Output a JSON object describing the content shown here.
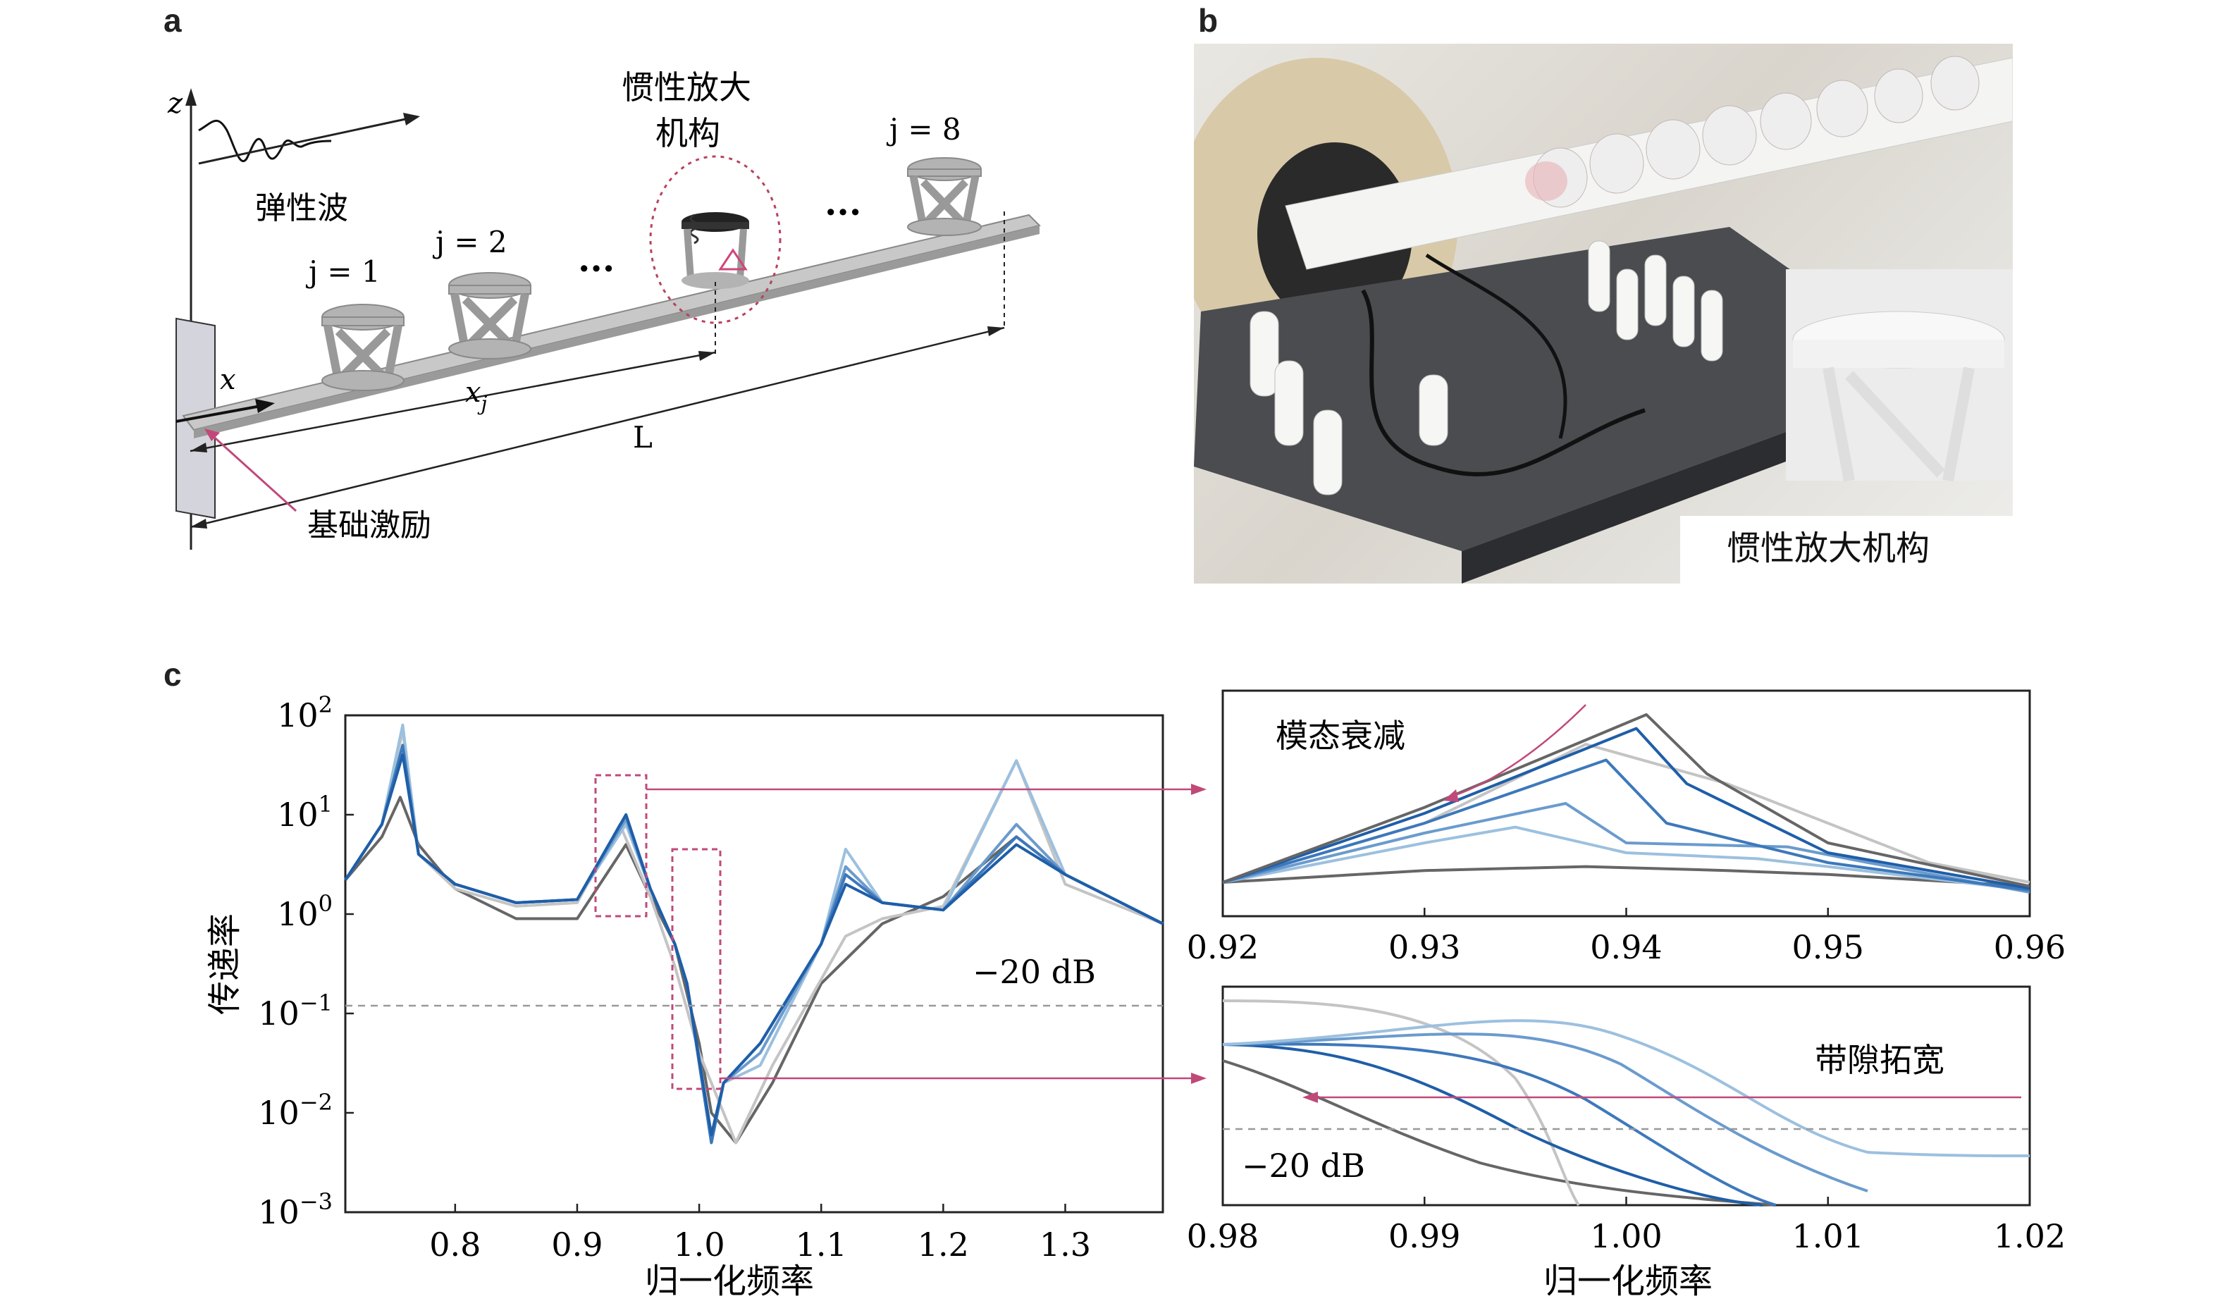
{
  "panel_a": {
    "letter": "a",
    "axis_z": "z",
    "axis_x": "x",
    "wave_label": "弹性波",
    "mechanism_label_line1": "惯性放大",
    "mechanism_label_line2": "机构",
    "cell_labels": [
      "j = 1",
      "j = 2",
      "j = 8"
    ],
    "ellipsis": "···",
    "xj_label": "x",
    "xj_sub": "j",
    "length_label": "L",
    "excitation_label": "基础激励"
  },
  "panel_b": {
    "letter": "b",
    "inset_label": "惯性放大机构"
  },
  "panel_c": {
    "letter": "c",
    "main_ylabel": "传递率",
    "main_xlabel": "归一化频率",
    "main_xticks": [
      "0.8",
      "0.9",
      "1.0",
      "1.1",
      "1.2",
      "1.3"
    ],
    "main_yticks": [
      {
        "base": "10",
        "exp": "2"
      },
      {
        "base": "10",
        "exp": "1"
      },
      {
        "base": "10",
        "exp": "0"
      },
      {
        "base": "10",
        "exp": "−1"
      },
      {
        "base": "10",
        "exp": "−2"
      },
      {
        "base": "10",
        "exp": "−3"
      }
    ],
    "main_threshold_label": "−20 dB",
    "top_inset_label": "模态衰减",
    "top_inset_xticks": [
      "0.92",
      "0.93",
      "0.94",
      "0.95",
      "0.96"
    ],
    "bottom_inset_label": "带隙拓宽",
    "bottom_inset_threshold": "−20 dB",
    "bottom_inset_xticks": [
      "0.98",
      "0.99",
      "1.00",
      "1.01",
      "1.02"
    ],
    "bottom_inset_xlabel": "归一化频率"
  },
  "colors": {
    "dark_gray": "#666666",
    "light_gray": "#c4c4c4",
    "blue_1": "#1f5ea8",
    "blue_2": "#3d78bb",
    "blue_3": "#6a9bcd",
    "blue_4": "#9cc0df",
    "highlight": "#c0497a"
  },
  "chart_data": [
    {
      "type": "line",
      "ylabel": "传递率",
      "xlabel": "归一化频率",
      "xlim": [
        0.71,
        1.38
      ],
      "ylim": [
        0.001,
        100
      ],
      "yscale": "log",
      "threshold": {
        "value": 0.1,
        "label": "−20 dB"
      },
      "series": [
        {
          "x": [
            0.71,
            0.74,
            0.755,
            0.77,
            0.8,
            0.85,
            0.9,
            0.94,
            0.96,
            0.98,
            1.0,
            1.01,
            1.03,
            1.06,
            1.1,
            1.15,
            1.2,
            1.26,
            1.3,
            1.38
          ],
          "values": [
            2.2,
            6,
            15,
            5,
            1.8,
            0.9,
            0.9,
            5,
            1.5,
            0.5,
            0.05,
            0.01,
            0.005,
            0.02,
            0.2,
            0.8,
            1.5,
            6,
            2.5,
            0.8
          ]
        },
        {
          "x": [
            0.71,
            0.74,
            0.757,
            0.77,
            0.8,
            0.85,
            0.9,
            0.935,
            0.96,
            0.98,
            1.0,
            1.01,
            1.03,
            1.06,
            1.12,
            1.15,
            1.2,
            1.26,
            1.3,
            1.38
          ],
          "values": [
            2.2,
            8,
            70,
            4,
            1.8,
            1.2,
            1.3,
            8,
            1.5,
            0.3,
            0.04,
            0.02,
            0.005,
            0.03,
            0.6,
            0.9,
            1.2,
            35,
            2,
            0.8
          ]
        },
        {
          "x": [
            0.71,
            0.74,
            0.757,
            0.77,
            0.8,
            0.85,
            0.9,
            0.94,
            0.96,
            0.98,
            0.99,
            1.01,
            1.02,
            1.05,
            1.1,
            1.12,
            1.15,
            1.2,
            1.26,
            1.3,
            1.38
          ],
          "values": [
            2.2,
            8,
            80,
            4,
            2,
            1.3,
            1.4,
            8,
            1.8,
            0.5,
            0.2,
            0.005,
            0.02,
            0.03,
            0.5,
            4.5,
            1.3,
            1.1,
            35,
            2.5,
            0.8
          ]
        },
        {
          "x": [
            0.71,
            0.74,
            0.757,
            0.77,
            0.8,
            0.85,
            0.9,
            0.94,
            0.96,
            0.98,
            0.99,
            1.01,
            1.02,
            1.05,
            1.1,
            1.12,
            1.15,
            1.2,
            1.26,
            1.3,
            1.38
          ],
          "values": [
            2.2,
            8,
            50,
            4,
            2,
            1.3,
            1.4,
            9,
            1.8,
            0.5,
            0.2,
            0.005,
            0.02,
            0.04,
            0.5,
            3,
            1.3,
            1.1,
            8,
            2.5,
            0.8
          ]
        },
        {
          "x": [
            0.71,
            0.74,
            0.757,
            0.77,
            0.8,
            0.85,
            0.9,
            0.94,
            0.96,
            0.98,
            0.99,
            1.01,
            1.02,
            1.05,
            1.1,
            1.12,
            1.15,
            1.2,
            1.26,
            1.3,
            1.38
          ],
          "values": [
            2.2,
            8,
            50,
            4,
            2,
            1.3,
            1.4,
            10,
            1.8,
            0.5,
            0.2,
            0.005,
            0.02,
            0.05,
            0.5,
            2.5,
            1.3,
            1.1,
            6,
            2.5,
            0.8
          ]
        },
        {
          "x": [
            0.71,
            0.74,
            0.757,
            0.77,
            0.8,
            0.85,
            0.9,
            0.94,
            0.96,
            0.98,
            0.99,
            1.01,
            1.02,
            1.05,
            1.1,
            1.12,
            1.15,
            1.2,
            1.26,
            1.3,
            1.38
          ],
          "values": [
            2.2,
            8,
            40,
            4,
            2,
            1.3,
            1.4,
            10,
            1.8,
            0.5,
            0.2,
            0.006,
            0.02,
            0.05,
            0.5,
            2,
            1.3,
            1.1,
            5,
            2.5,
            0.8
          ]
        }
      ]
    },
    {
      "type": "line",
      "title": "模态衰减",
      "xlim": [
        0.92,
        0.96
      ],
      "series": [
        {
          "x": [
            0.92,
            0.93,
            0.938,
            0.945,
            0.95,
            0.96
          ],
          "values": [
            0.1,
            0.16,
            0.18,
            0.16,
            0.14,
            0.08
          ]
        },
        {
          "x": [
            0.92,
            0.93,
            0.935,
            0.938,
            0.945,
            0.955,
            0.96
          ],
          "values": [
            0.1,
            0.4,
            0.65,
            0.8,
            0.6,
            0.2,
            0.1
          ]
        },
        {
          "x": [
            0.92,
            0.93,
            0.9345,
            0.94,
            0.9465,
            0.95,
            0.96
          ],
          "values": [
            0.1,
            0.3,
            0.38,
            0.25,
            0.22,
            0.18,
            0.06
          ]
        },
        {
          "x": [
            0.92,
            0.93,
            0.937,
            0.94,
            0.948,
            0.952,
            0.96
          ],
          "values": [
            0.1,
            0.35,
            0.5,
            0.3,
            0.28,
            0.2,
            0.05
          ]
        },
        {
          "x": [
            0.92,
            0.93,
            0.939,
            0.942,
            0.95,
            0.96
          ],
          "values": [
            0.1,
            0.4,
            0.72,
            0.4,
            0.2,
            0.06
          ]
        },
        {
          "x": [
            0.92,
            0.93,
            0.9405,
            0.943,
            0.95,
            0.96
          ],
          "values": [
            0.1,
            0.45,
            0.88,
            0.6,
            0.25,
            0.07
          ]
        },
        {
          "x": [
            0.92,
            0.93,
            0.941,
            0.944,
            0.95,
            0.96
          ],
          "values": [
            0.1,
            0.48,
            0.95,
            0.65,
            0.3,
            0.08
          ]
        }
      ]
    },
    {
      "type": "line",
      "title": "带隙拓宽",
      "xlim": [
        0.98,
        1.02
      ],
      "threshold": {
        "label": "−20 dB"
      },
      "series": []
    }
  ]
}
